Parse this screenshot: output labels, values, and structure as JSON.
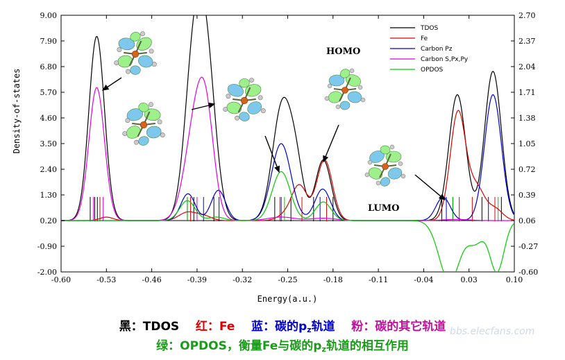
{
  "chart_data": {
    "type": "line",
    "xlabel": "Energy(a.u.)",
    "ylabel": "Density-of-states",
    "xlim": [
      -0.6,
      0.1
    ],
    "ylim_left": [
      -2.0,
      9.0
    ],
    "ylim_right": [
      -0.6,
      2.7
    ],
    "x_ticks": [
      "-0.60",
      "-0.53",
      "-0.46",
      "-0.39",
      "-0.32",
      "-0.25",
      "-0.18",
      "-0.11",
      "-0.04",
      "0.03",
      "0.10"
    ],
    "y_ticks_left": [
      "9.00",
      "7.90",
      "6.80",
      "5.70",
      "4.60",
      "3.50",
      "2.40",
      "1.30",
      "0.20",
      "-0.90",
      "-2.00"
    ],
    "y_ticks_right": [
      "2.70",
      "2.37",
      "2.04",
      "1.71",
      "1.38",
      "1.05",
      "0.72",
      "0.39",
      "0.06",
      "-0.27",
      "-0.60"
    ],
    "legend_position": "top-right",
    "series": [
      {
        "name": "TDOS",
        "color": "#000000",
        "peaks": [
          [
            -0.545,
            7.9,
            0.012
          ],
          [
            -0.395,
            6.6,
            0.014
          ],
          [
            -0.375,
            6.2,
            0.014
          ],
          [
            -0.258,
            5.0,
            0.015
          ],
          [
            -0.236,
            1.7,
            0.011
          ],
          [
            -0.195,
            2.6,
            0.012
          ],
          [
            0.012,
            5.4,
            0.013
          ],
          [
            0.067,
            6.4,
            0.013
          ]
        ]
      },
      {
        "name": "Fe",
        "color": "#e00000",
        "peaks": [
          [
            -0.53,
            0.15,
            0.01
          ],
          [
            -0.405,
            0.35,
            0.013
          ],
          [
            -0.38,
            0.2,
            0.012
          ],
          [
            -0.255,
            0.2,
            0.012
          ],
          [
            -0.232,
            1.5,
            0.012
          ],
          [
            -0.193,
            2.6,
            0.012
          ],
          [
            0.013,
            4.65,
            0.012
          ],
          [
            0.042,
            1.35,
            0.012
          ],
          [
            0.07,
            0.5,
            0.012
          ]
        ]
      },
      {
        "name": "Carbon Pz",
        "color": "#0000cc",
        "peaks": [
          [
            -0.404,
            1.15,
            0.011
          ],
          [
            -0.357,
            1.3,
            0.011
          ],
          [
            -0.26,
            3.3,
            0.015
          ],
          [
            -0.196,
            1.35,
            0.012
          ],
          [
            -0.01,
            1.0,
            0.011
          ],
          [
            0.067,
            5.4,
            0.013
          ]
        ]
      },
      {
        "name": "Carbon S,Px,Py",
        "color": "#e000e0",
        "peaks": [
          [
            -0.545,
            5.7,
            0.012
          ],
          [
            -0.39,
            4.6,
            0.017
          ],
          [
            -0.375,
            2.4,
            0.012
          ],
          [
            -0.26,
            0.15,
            0.02
          ],
          [
            -0.195,
            0.1,
            0.02
          ],
          [
            0.01,
            0.05,
            0.02
          ]
        ]
      },
      {
        "name": "OPDOS",
        "color": "#00cc00",
        "peaks": [
          [
            -0.405,
            0.85,
            0.012
          ],
          [
            -0.36,
            0.15,
            0.012
          ],
          [
            -0.26,
            2.1,
            0.014
          ],
          [
            -0.195,
            0.8,
            0.012
          ],
          [
            0.0,
            -2.6,
            0.016
          ],
          [
            0.04,
            -0.9,
            0.012
          ],
          [
            0.073,
            -2.2,
            0.011
          ]
        ]
      }
    ],
    "levels": [
      {
        "color": "#000000",
        "x": [
          -0.555,
          -0.548,
          -0.544,
          -0.405,
          -0.395,
          -0.364,
          -0.27,
          -0.245,
          -0.21,
          -0.18,
          -0.012,
          0.005,
          0.05,
          0.08
        ]
      },
      {
        "color": "#e00000",
        "x": [
          -0.54,
          -0.4,
          -0.262,
          -0.228,
          -0.19,
          0.015,
          0.035,
          0.07
        ]
      },
      {
        "color": "#0000cc",
        "x": [
          -0.38,
          -0.356,
          -0.26,
          -0.2,
          -0.005,
          0.06
        ]
      },
      {
        "color": "#e000e0",
        "x": [
          -0.55,
          -0.535,
          -0.39
        ]
      },
      {
        "color": "#00cc00",
        "x": [
          -0.405,
          -0.255,
          0.005,
          0.075
        ]
      }
    ],
    "annotations": [
      "HOMO",
      "LUMO"
    ]
  },
  "caption": {
    "black_label": "黑：",
    "black_value": "TDOS",
    "red_label": "红：",
    "red_value": "Fe",
    "blue_label": "蓝：碳的p",
    "blue_sub": "z",
    "blue_tail": "轨道",
    "pink_label": "粉：碳的其它轨道",
    "green_pre": "绿：OPDOS，衡量Fe与碳的p",
    "green_sub": "z",
    "green_tail": "轨道的相互作用"
  },
  "watermark": "bbs.elecfans.com"
}
